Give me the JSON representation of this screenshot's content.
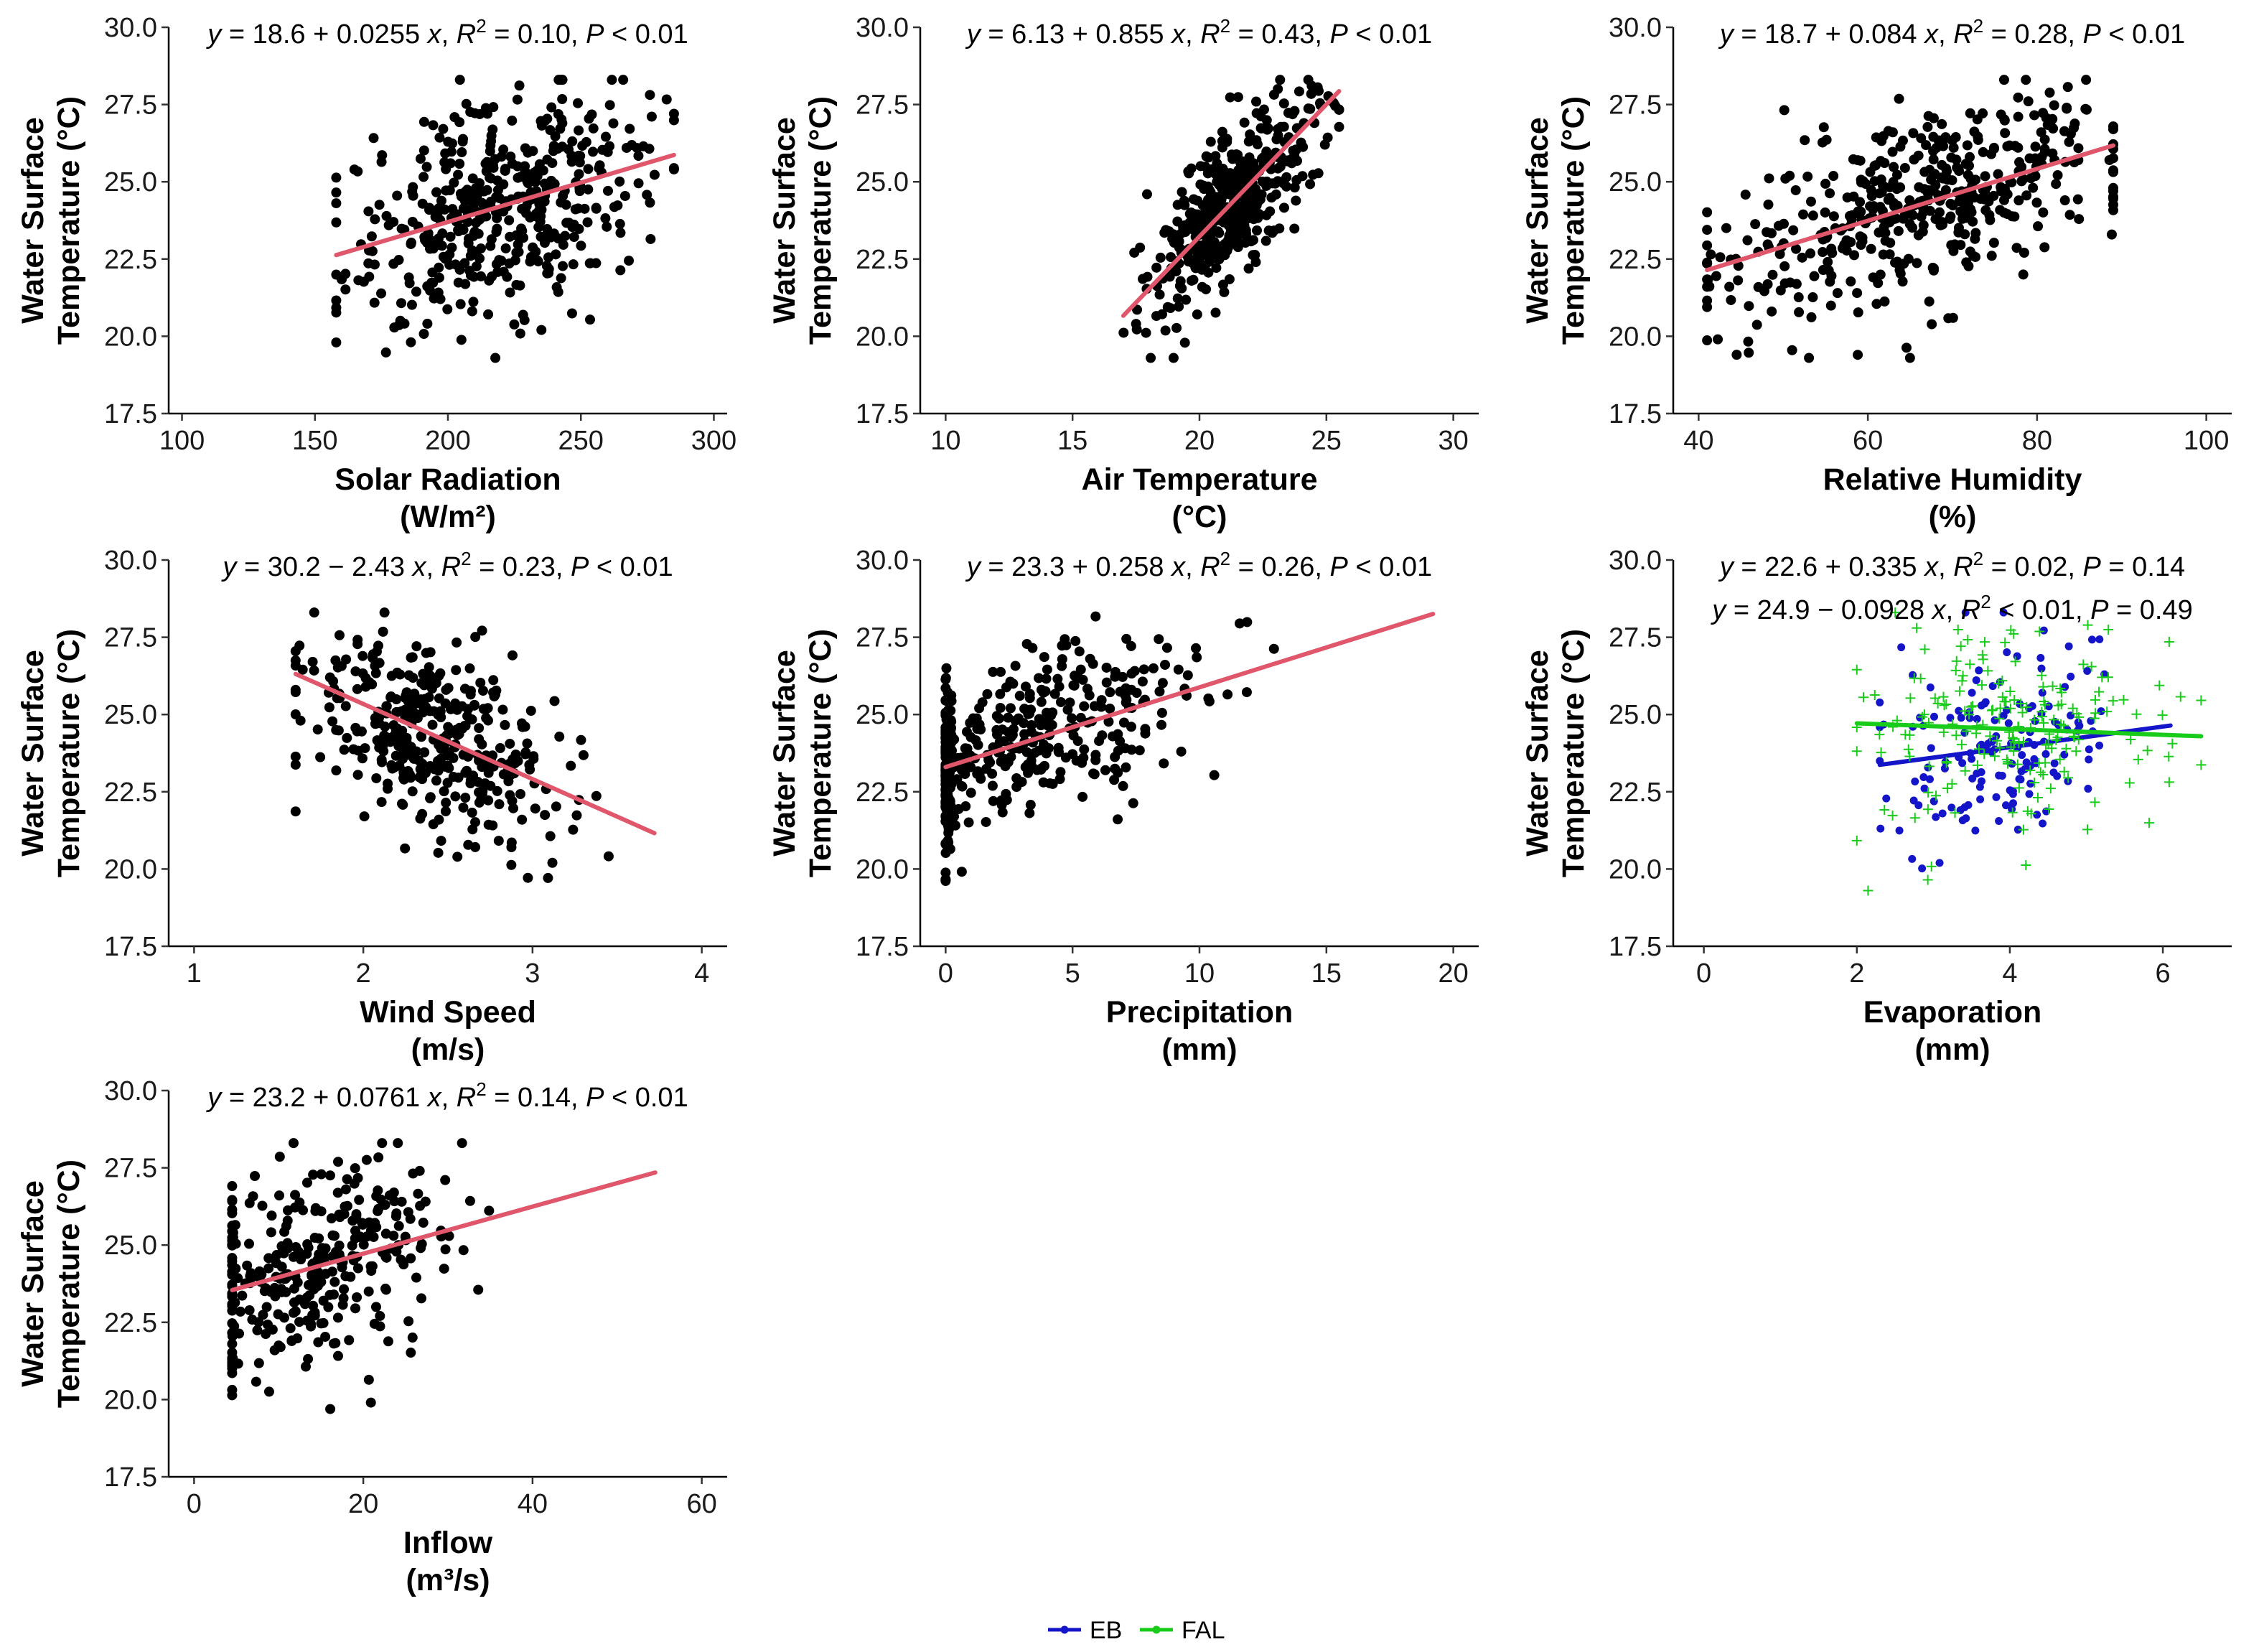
{
  "colors": {
    "point": "#000000",
    "fit": "#e0566a",
    "eb": "#1414c8",
    "fal": "#19cc19"
  },
  "y_axis": {
    "label_lines": [
      "Water Surface",
      "Temperature (°C)"
    ],
    "range": [
      17.5,
      30
    ],
    "ticks": [
      "17.5",
      "20.0",
      "22.5",
      "25.0",
      "27.5",
      "30.0"
    ]
  },
  "legend": {
    "items": [
      {
        "name": "EB",
        "color": "#1414c8"
      },
      {
        "name": "FAL",
        "color": "#19cc19"
      }
    ]
  },
  "chart_data": [
    {
      "id": "solar",
      "type": "scatter",
      "xlabel_lines": [
        "Solar Radiation",
        "(W/m²)"
      ],
      "xlim": [
        95,
        305
      ],
      "xticks": [
        100,
        150,
        200,
        250,
        300
      ],
      "x_range": [
        158,
        285
      ],
      "eq": {
        "intercept": "18.6",
        "sign": "+",
        "slope": "0.0255",
        "r2_op": "=",
        "r2": "0.10",
        "p_op": "<",
        "p": "0.01"
      },
      "fit": {
        "b0": 18.6,
        "b1": 0.0255
      },
      "cloud": {
        "xm": 220,
        "xs": 28,
        "noise": 1.7
      },
      "n": 460
    },
    {
      "id": "air",
      "type": "scatter",
      "xlabel_lines": [
        "Air Temperature",
        "(°C)"
      ],
      "xlim": [
        9,
        31
      ],
      "xticks": [
        10,
        15,
        20,
        25,
        30
      ],
      "x_range": [
        17,
        25.5
      ],
      "eq": {
        "intercept": "6.13",
        "sign": "+",
        "slope": "0.855",
        "r2_op": "=",
        "r2": "0.43",
        "p_op": "<",
        "p": "0.01"
      },
      "fit": {
        "b0": 6.13,
        "b1": 0.855
      },
      "cloud": {
        "xm": 21.3,
        "xs": 1.6,
        "noise": 1.15
      },
      "n": 460
    },
    {
      "id": "humidity",
      "type": "scatter",
      "xlabel_lines": [
        "Relative Humidity",
        "(%)"
      ],
      "xlim": [
        37,
        103
      ],
      "xticks": [
        40,
        60,
        80,
        100
      ],
      "x_range": [
        41,
        89
      ],
      "eq": {
        "intercept": "18.7",
        "sign": "+",
        "slope": "0.084",
        "r2_op": "=",
        "r2": "0.28",
        "p_op": "<",
        "p": "0.01"
      },
      "fit": {
        "b0": 18.7,
        "b1": 0.084
      },
      "cloud": {
        "xm": 66,
        "xs": 12,
        "noise": 1.45
      },
      "n": 460
    },
    {
      "id": "wind",
      "type": "scatter",
      "xlabel_lines": [
        "Wind Speed",
        "(m/s)"
      ],
      "xlim": [
        0.85,
        4.15
      ],
      "xticks": [
        1,
        2,
        3,
        4
      ],
      "x_range": [
        1.6,
        3.72
      ],
      "eq": {
        "intercept": "30.2",
        "sign": "−",
        "slope": "2.43",
        "r2_op": "=",
        "r2": "0.23",
        "p_op": "<",
        "p": "0.01"
      },
      "fit": {
        "b0": 30.2,
        "b1": -2.43
      },
      "cloud": {
        "xm": 2.4,
        "xs": 0.38,
        "noise": 1.5
      },
      "n": 380
    },
    {
      "id": "precip",
      "type": "scatter",
      "xlabel_lines": [
        "Precipitation",
        "(mm)"
      ],
      "xlim": [
        -1,
        21
      ],
      "xticks": [
        0,
        5,
        10,
        15,
        20
      ],
      "x_range": [
        0,
        19.2
      ],
      "eq": {
        "intercept": "23.3",
        "sign": "+",
        "slope": "0.258",
        "r2_op": "=",
        "r2": "0.26",
        "p_op": "<",
        "p": "0.01"
      },
      "fit": {
        "b0": 23.3,
        "b1": 0.258
      },
      "cloud": {
        "xm": 3,
        "xs": 3.5,
        "noise": 1.3
      },
      "n": 460
    },
    {
      "id": "evap",
      "type": "scatter",
      "xlabel_lines": [
        "Evaporation",
        "(mm)"
      ],
      "xlim": [
        -0.4,
        6.9
      ],
      "xticks": [
        0,
        2,
        4,
        6
      ],
      "series": [
        {
          "name": "EB",
          "marker": "circle",
          "x_range": [
            2.3,
            6.1
          ],
          "eq": {
            "intercept": "22.6",
            "sign": "+",
            "slope": "0.335",
            "r2_op": "=",
            "r2": "0.02",
            "p_op": "=",
            "p": "0.14"
          },
          "fit": {
            "b0": 22.6,
            "b1": 0.335
          },
          "cloud": {
            "xm": 3.9,
            "xs": 0.7,
            "noise": 1.7
          },
          "n": 150
        },
        {
          "name": "FAL",
          "marker": "plus",
          "x_range": [
            2.0,
            6.5
          ],
          "eq": {
            "intercept": "24.9",
            "sign": "−",
            "slope": "0.0928",
            "r2_op": "<",
            "r2": "0.01",
            "p_op": "=",
            "p": "0.49"
          },
          "fit": {
            "b0": 24.9,
            "b1": -0.0928
          },
          "cloud": {
            "xm": 4.0,
            "xs": 1.0,
            "noise": 1.6
          },
          "n": 190
        }
      ]
    },
    {
      "id": "inflow",
      "type": "scatter",
      "xlabel_lines": [
        "Inflow",
        "(m³/s)"
      ],
      "xlim": [
        -3,
        63
      ],
      "xticks": [
        0,
        20,
        40,
        60
      ],
      "x_range": [
        4.5,
        54.5
      ],
      "eq": {
        "intercept": "23.2",
        "sign": "+",
        "slope": "0.0761",
        "r2_op": "=",
        "r2": "0.14",
        "p_op": "<",
        "p": "0.01"
      },
      "fit": {
        "b0": 23.2,
        "b1": 0.0761
      },
      "cloud": {
        "xm": 14,
        "xs": 8,
        "noise": 1.6
      },
      "n": 330
    }
  ]
}
